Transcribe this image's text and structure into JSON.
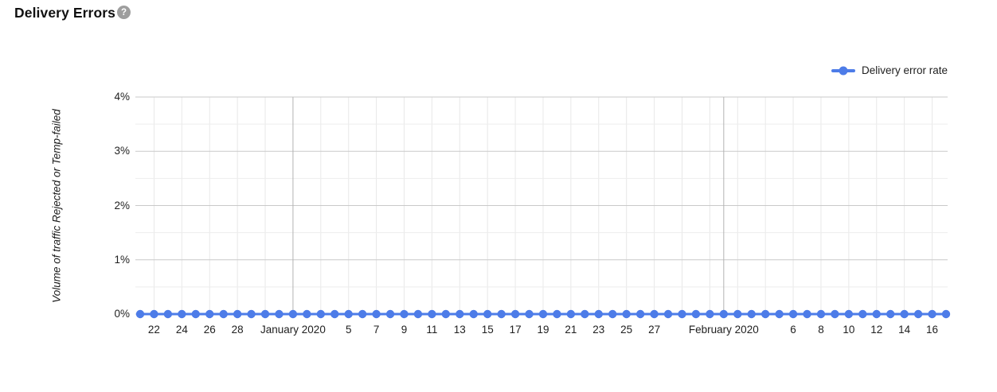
{
  "header": {
    "title": "Delivery Errors",
    "help_icon_glyph": "?"
  },
  "legend": {
    "label": "Delivery error rate",
    "marker_color": "#4d7ce8"
  },
  "colors": {
    "series_blue": "#4d7ce8",
    "major_gridline": "#c9c9c9",
    "minor_gridline": "#ededed",
    "vertical_gridline": "#e8e8e8",
    "month_gridline": "#b3b3b3",
    "tick_text": "#1f1f1f",
    "help_icon_gray": "#9e9e9e"
  },
  "chart_data": {
    "type": "line",
    "title": "Delivery Errors",
    "ylabel": "Volume of traffic Rejected or Temp-failed",
    "xlabel": "",
    "ylim": [
      0,
      4
    ],
    "y_unit": "percent",
    "grid": true,
    "legend_position": "top-right",
    "y_ticks": [
      {
        "value": 0,
        "label": "0%"
      },
      {
        "value": 1,
        "label": "1%"
      },
      {
        "value": 2,
        "label": "2%"
      },
      {
        "value": 3,
        "label": "3%"
      },
      {
        "value": 4,
        "label": "4%"
      }
    ],
    "y_minor_gridlines": [
      0.5,
      1.5,
      2.5,
      3.5
    ],
    "num_points": 59,
    "series": [
      {
        "name": "Delivery error rate",
        "color": "#4d7ce8",
        "values": [
          0,
          0,
          0,
          0,
          0,
          0,
          0,
          0,
          0,
          0,
          0,
          0,
          0,
          0,
          0,
          0,
          0,
          0,
          0,
          0,
          0,
          0,
          0,
          0,
          0,
          0,
          0,
          0,
          0,
          0,
          0,
          0,
          0,
          0,
          0,
          0,
          0,
          0,
          0,
          0,
          0,
          0,
          0,
          0,
          0,
          0,
          0,
          0,
          0,
          0,
          0,
          0,
          0,
          0,
          0,
          0,
          0,
          0,
          0
        ]
      }
    ],
    "x_tick_labels": [
      {
        "index": 1,
        "label": "22"
      },
      {
        "index": 3,
        "label": "24"
      },
      {
        "index": 5,
        "label": "26"
      },
      {
        "index": 7,
        "label": "28"
      },
      {
        "index": 11,
        "label": "January 2020"
      },
      {
        "index": 15,
        "label": "5"
      },
      {
        "index": 17,
        "label": "7"
      },
      {
        "index": 19,
        "label": "9"
      },
      {
        "index": 21,
        "label": "11"
      },
      {
        "index": 23,
        "label": "13"
      },
      {
        "index": 25,
        "label": "15"
      },
      {
        "index": 27,
        "label": "17"
      },
      {
        "index": 29,
        "label": "19"
      },
      {
        "index": 31,
        "label": "21"
      },
      {
        "index": 33,
        "label": "23"
      },
      {
        "index": 35,
        "label": "25"
      },
      {
        "index": 37,
        "label": "27"
      },
      {
        "index": 42,
        "label": "February 2020"
      },
      {
        "index": 47,
        "label": "6"
      },
      {
        "index": 49,
        "label": "8"
      },
      {
        "index": 51,
        "label": "10"
      },
      {
        "index": 53,
        "label": "12"
      },
      {
        "index": 55,
        "label": "14"
      },
      {
        "index": 57,
        "label": "16"
      }
    ],
    "x_gridline_indices_light": [
      1,
      3,
      5,
      7,
      9,
      13,
      15,
      17,
      19,
      21,
      23,
      25,
      27,
      29,
      31,
      33,
      35,
      37,
      39,
      41,
      43,
      45,
      47,
      49,
      51,
      53,
      55,
      57
    ],
    "x_gridline_indices_month": [
      11,
      42
    ]
  }
}
